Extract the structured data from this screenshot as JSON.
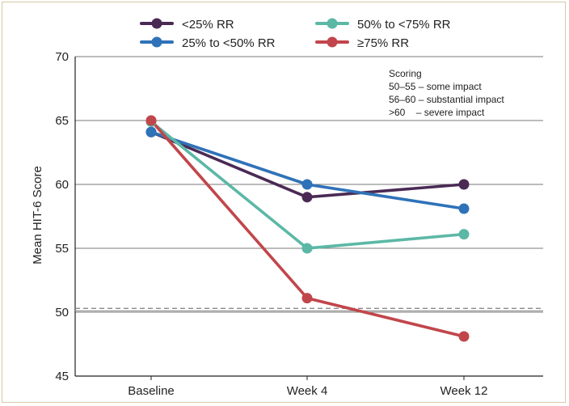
{
  "chart_data": {
    "type": "line",
    "categories": [
      "Baseline",
      "Week 4",
      "Week 12"
    ],
    "ylabel": "Mean HIT-6 Score",
    "xlabel": "",
    "ylim": [
      45,
      70
    ],
    "yticks": [
      45,
      50,
      55,
      60,
      65,
      70
    ],
    "grid": true,
    "legend_position": "top",
    "reference_line": {
      "y": 50.2,
      "style": "dashed",
      "color": "#8a8a8a"
    },
    "series": [
      {
        "name": "<25% RR",
        "color": "#4a2a55",
        "values": [
          64.1,
          59.0,
          60.0
        ]
      },
      {
        "name": "25% to <50% RR",
        "color": "#2f72b8",
        "values": [
          64.1,
          60.0,
          58.1
        ]
      },
      {
        "name": "50% to <75% RR",
        "color": "#5bb8a6",
        "values": [
          64.9,
          55.0,
          56.1
        ]
      },
      {
        "name": "≥75% RR",
        "color": "#c1464b",
        "values": [
          65.0,
          51.1,
          48.1
        ]
      }
    ],
    "annotation": {
      "title": "Scoring",
      "lines": [
        "50–55 – some impact",
        "56–60 – substantial impact",
        ">60    – severe impact"
      ]
    }
  }
}
